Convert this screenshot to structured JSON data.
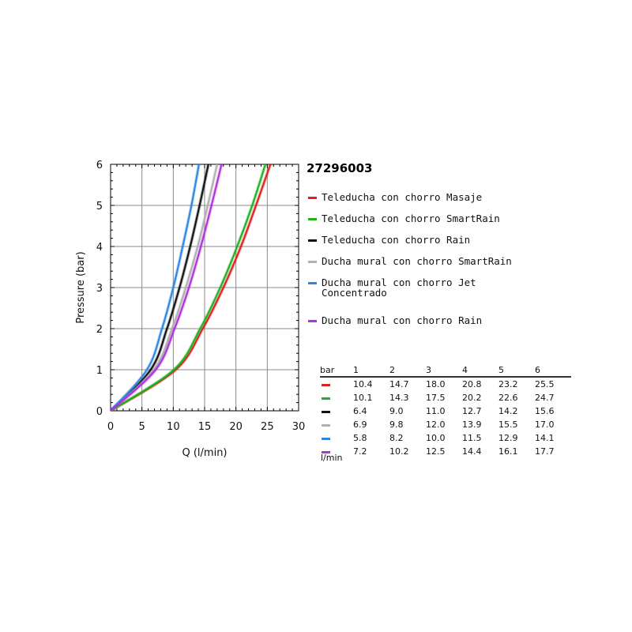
{
  "chart_data": {
    "type": "line",
    "title": "27296003",
    "xlabel": "Q (l/min)",
    "ylabel": "Pressure (bar)",
    "xlim": [
      0,
      30
    ],
    "ylim": [
      0,
      6
    ],
    "xticks": [
      "0",
      "5",
      "10",
      "15",
      "20",
      "25",
      "30"
    ],
    "yticks": [
      "0",
      "1",
      "2",
      "3",
      "4",
      "5",
      "6"
    ],
    "grid": true,
    "legend_position": "right",
    "series": [
      {
        "name": "Teleducha con chorro Masaje",
        "color": "#e02020",
        "x": [
          0,
          10.4,
          14.7,
          18.0,
          20.8,
          23.2,
          25.5
        ],
        "y": [
          0,
          1,
          2,
          3,
          4,
          5,
          6
        ]
      },
      {
        "name": "Teleducha con chorro SmartRain",
        "color": "#20b020",
        "x": [
          0,
          10.1,
          14.3,
          17.5,
          20.2,
          22.6,
          24.7
        ],
        "y": [
          0,
          1,
          2,
          3,
          4,
          5,
          6
        ]
      },
      {
        "name": "Teleducha con chorro Rain",
        "color": "#111111",
        "x": [
          0,
          6.4,
          9.0,
          11.0,
          12.7,
          14.2,
          15.6
        ],
        "y": [
          0,
          1,
          2,
          3,
          4,
          5,
          6
        ]
      },
      {
        "name": "Ducha mural con chorro SmartRain",
        "color": "#b0b0b0",
        "x": [
          0,
          6.9,
          9.8,
          12.0,
          13.9,
          15.5,
          17.0
        ],
        "y": [
          0,
          1,
          2,
          3,
          4,
          5,
          6
        ]
      },
      {
        "name": "Ducha mural con chorro Jet\nConcentrado",
        "color": "#2e86e0",
        "x": [
          0,
          5.8,
          8.2,
          10.0,
          11.5,
          12.9,
          14.1
        ],
        "y": [
          0,
          1,
          2,
          3,
          4,
          5,
          6
        ]
      },
      {
        "name": "Ducha mural con chorro Rain",
        "color": "#b030e0",
        "x": [
          0,
          7.2,
          10.2,
          12.5,
          14.4,
          16.1,
          17.7
        ],
        "y": [
          0,
          1,
          2,
          3,
          4,
          5,
          6
        ]
      }
    ]
  },
  "table": {
    "corner_label": "bar",
    "unit_label": "l/min",
    "headers": [
      "1",
      "2",
      "3",
      "4",
      "5",
      "6"
    ],
    "rows": [
      {
        "color": "#e02020",
        "values": [
          "10.4",
          "14.7",
          "18.0",
          "20.8",
          "23.2",
          "25.5"
        ]
      },
      {
        "color": "#20b020",
        "values": [
          "10.1",
          "14.3",
          "17.5",
          "20.2",
          "22.6",
          "24.7"
        ]
      },
      {
        "color": "#111111",
        "values": [
          "6.4",
          "9.0",
          "11.0",
          "12.7",
          "14.2",
          "15.6"
        ]
      },
      {
        "color": "#b0b0b0",
        "values": [
          "6.9",
          "9.8",
          "12.0",
          "13.9",
          "15.5",
          "17.0"
        ]
      },
      {
        "color": "#2e86e0",
        "values": [
          "5.8",
          "8.2",
          "10.0",
          "11.5",
          "12.9",
          "14.1"
        ]
      },
      {
        "color": "#b030e0",
        "values": [
          "7.2",
          "10.2",
          "12.5",
          "14.4",
          "16.1",
          "17.7"
        ]
      }
    ]
  }
}
